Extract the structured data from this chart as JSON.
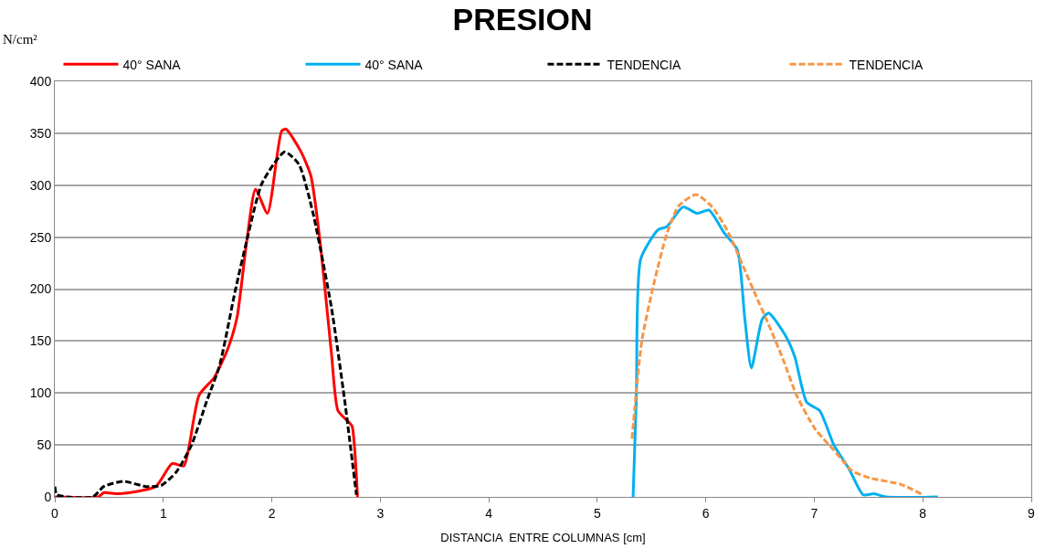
{
  "chart_data": {
    "type": "line",
    "title": "PRESION",
    "xlabel": "DISTANCIA  ENTRE COLUMNAS [cm]",
    "ylabel": "N/cm²",
    "xlim": [
      0,
      9
    ],
    "xticks": [
      0,
      1,
      2,
      3,
      4,
      5,
      6,
      7,
      8,
      9
    ],
    "ylim": [
      0,
      400
    ],
    "yticks": [
      0,
      50,
      100,
      150,
      200,
      250,
      300,
      350,
      400
    ],
    "grid": "y",
    "legend": "top",
    "marker": "none",
    "series": [
      {
        "name": "40° SANA",
        "color": "#ff0000",
        "line_style": "solid",
        "x": [
          0,
          0.4,
          0.45,
          0.59,
          0.93,
          1.08,
          1.19,
          1.24,
          1.33,
          1.47,
          1.6,
          1.68,
          1.77,
          1.85,
          1.96,
          2.09,
          2.13,
          2.27,
          2.36,
          2.44,
          2.55,
          2.61,
          2.71,
          2.74,
          2.79
        ],
        "values": [
          0,
          0,
          4,
          3,
          10,
          32,
          30,
          50,
          98,
          115,
          144,
          173,
          247,
          296,
          273,
          352,
          354,
          332,
          309,
          250,
          138,
          83,
          72,
          68,
          0
        ]
      },
      {
        "name": "40° SANA",
        "color": "#00b0f0",
        "line_style": "solid",
        "x": [
          5.33,
          5.36,
          5.4,
          5.56,
          5.64,
          5.79,
          5.92,
          6.03,
          6.17,
          6.29,
          6.36,
          6.42,
          6.52,
          6.58,
          6.73,
          6.82,
          6.93,
          7.05,
          7.18,
          7.32,
          7.45,
          7.55,
          7.66,
          8.14
        ],
        "values": [
          0,
          97,
          229,
          257,
          260,
          279,
          273,
          276,
          254,
          238,
          171,
          124,
          171,
          177,
          156,
          135,
          91,
          83,
          50,
          27,
          2,
          3,
          0,
          0
        ]
      },
      {
        "name": "TENDENCIA",
        "color": "#000000",
        "line_style": "dashed",
        "x": [
          0,
          0.02,
          0.35,
          0.45,
          0.63,
          0.84,
          0.98,
          1.12,
          1.26,
          1.4,
          1.52,
          1.66,
          1.77,
          1.91,
          2.12,
          2.25,
          2.38,
          2.55,
          2.67,
          2.78
        ],
        "values": [
          10,
          2,
          0,
          10,
          15,
          10,
          11,
          24,
          50,
          92,
          127,
          197,
          247,
          302,
          332,
          320,
          273,
          182,
          94,
          2
        ]
      },
      {
        "name": "TENDENCIA",
        "color": "#f79646",
        "line_style": "dashed",
        "x": [
          5.32,
          5.41,
          5.53,
          5.64,
          5.75,
          5.91,
          6.06,
          6.2,
          6.34,
          6.46,
          6.57,
          6.71,
          6.84,
          7.01,
          7.18,
          7.35,
          7.52,
          7.8,
          8.0
        ],
        "values": [
          56,
          150,
          209,
          253,
          280,
          291,
          279,
          256,
          223,
          194,
          168,
          133,
          97,
          65,
          45,
          25,
          18,
          12,
          2
        ]
      }
    ]
  }
}
